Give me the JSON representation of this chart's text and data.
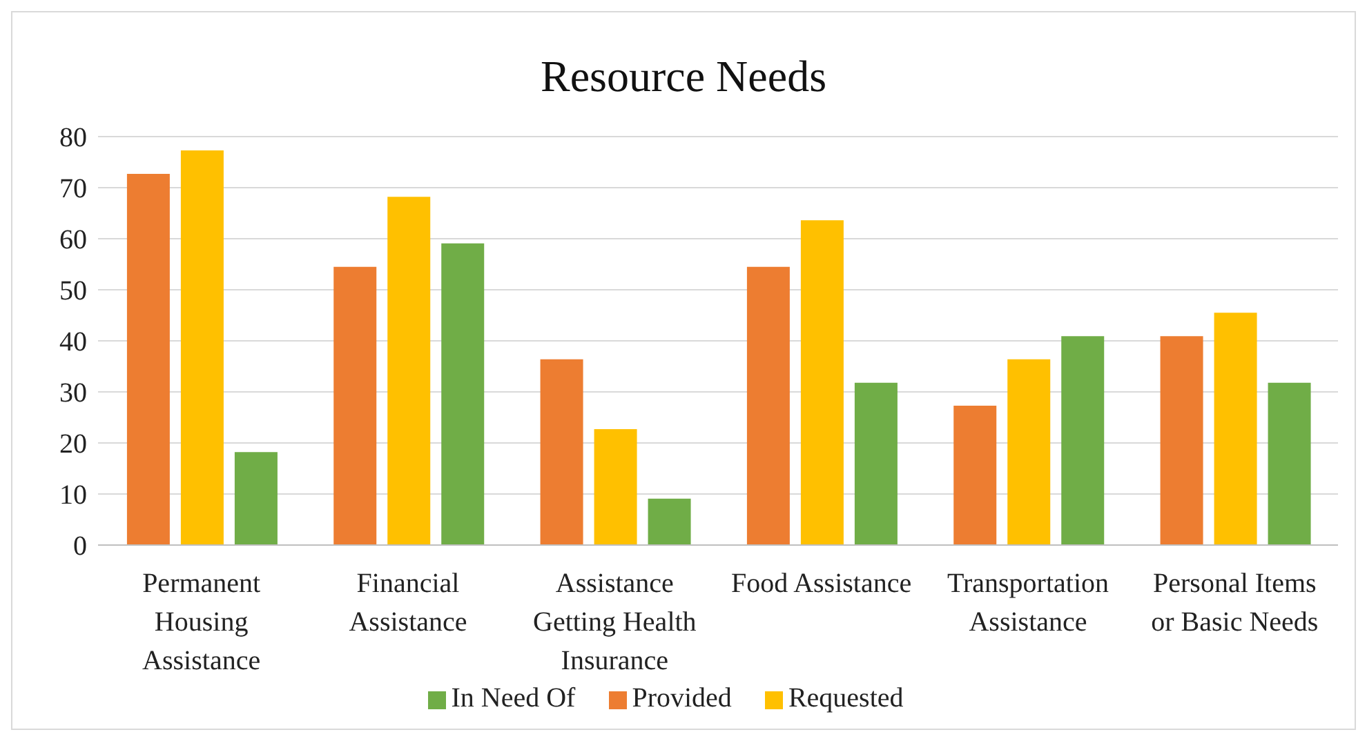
{
  "chart_data": {
    "type": "bar",
    "title": "Resource Needs",
    "categories": [
      "Permanent Housing Assistance",
      "Financial Assistance",
      "Assistance Getting Health Insurance",
      "Food Assistance",
      "Transportation Assistance",
      "Personal Items or Basic Needs"
    ],
    "series": [
      {
        "name": "Provided",
        "color": "#ed7d31",
        "values": [
          72.7,
          54.5,
          36.4,
          54.5,
          27.3,
          40.9
        ]
      },
      {
        "name": "Requested",
        "color": "#ffc000",
        "values": [
          77.3,
          68.2,
          22.7,
          63.6,
          36.4,
          45.5
        ]
      },
      {
        "name": "In Need Of",
        "color": "#70ad47",
        "values": [
          18.2,
          59.1,
          9.1,
          31.8,
          40.9,
          31.8
        ]
      }
    ],
    "ylim": [
      0,
      80
    ],
    "yticks": [
      0,
      10,
      20,
      30,
      40,
      50,
      60,
      70,
      80
    ],
    "grid": "y",
    "legend": "bottom"
  }
}
